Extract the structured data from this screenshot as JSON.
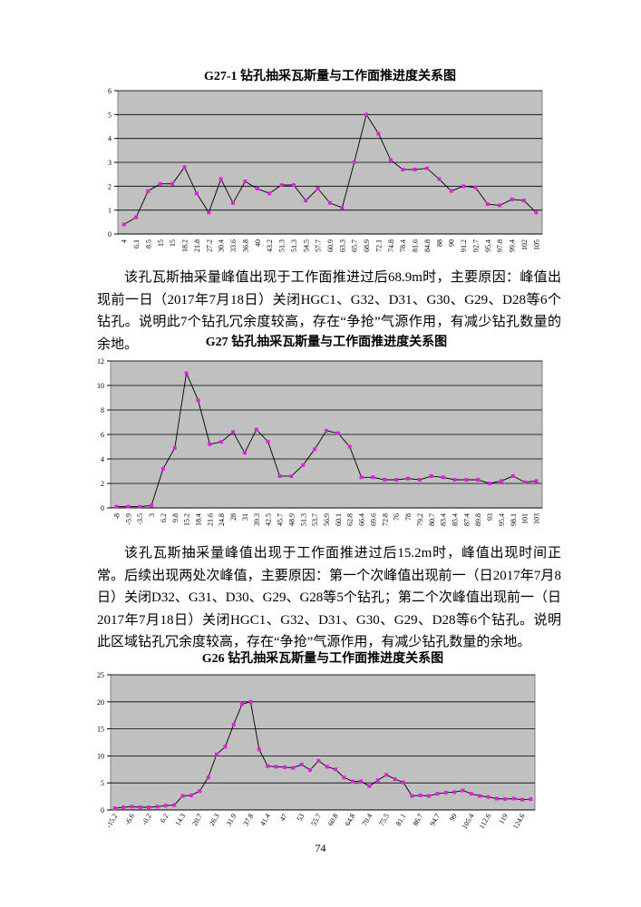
{
  "chart_data": [
    {
      "type": "line",
      "title": "G27-1 钻孔抽采瓦斯量与工作面推进度关系图",
      "categories": [
        "4",
        "6.1",
        "8.5",
        "15",
        "15",
        "18.2",
        "21.8",
        "27.2",
        "30.4",
        "33.6",
        "36.8",
        "40",
        "43.2",
        "51.3",
        "51.3",
        "54.5",
        "57.7",
        "60.9",
        "63.3",
        "65.7",
        "68.9",
        "72.1",
        "74.8",
        "78.4",
        "81.6",
        "84.8",
        "88",
        "90",
        "91.2",
        "92.7",
        "95.4",
        "97.8",
        "99.4",
        "102",
        "105"
      ],
      "series": [
        {
          "color": "#e020e0",
          "values": [
            0.4,
            0.7,
            1.8,
            2.1,
            2.1,
            2.8,
            1.7,
            0.9,
            2.3,
            1.3,
            2.2,
            1.9,
            1.7,
            2.05,
            2.05,
            1.4,
            1.9,
            1.3,
            1.1,
            3.0,
            5.0,
            4.2,
            3.1,
            2.7,
            2.7,
            2.75,
            2.3,
            1.8,
            2.0,
            1.95,
            1.25,
            1.2,
            1.45,
            1.4,
            0.9
          ]
        }
      ],
      "ylim": [
        0,
        6
      ],
      "yticks": [
        0,
        1,
        2,
        3,
        4,
        5,
        6
      ],
      "grid": true
    },
    {
      "type": "line",
      "title": "G27 钻孔抽采瓦斯量与工作面推进度关系图",
      "categories": [
        "-8",
        "-5.9",
        "-3.5",
        "3",
        "6.2",
        "9.8",
        "15.2",
        "18.4",
        "21.6",
        "24.8",
        "28",
        "31",
        "39.3",
        "42.5",
        "45.7",
        "48.9",
        "51.3",
        "53.7",
        "56.9",
        "60.1",
        "62.8",
        "66.4",
        "69.6",
        "72.8",
        "76",
        "78",
        "79.2",
        "80.7",
        "83.4",
        "85.4",
        "87.4",
        "89.8",
        "93",
        "95.4",
        "98.1",
        "101",
        "103"
      ],
      "series": [
        {
          "color": "#e020e0",
          "values": [
            0.1,
            0.1,
            0.1,
            0.2,
            3.2,
            4.9,
            11,
            8.8,
            5.2,
            5.4,
            6.2,
            4.5,
            6.4,
            5.4,
            2.6,
            2.6,
            3.5,
            4.8,
            6.3,
            6.1,
            5.0,
            2.5,
            2.5,
            2.3,
            2.3,
            2.4,
            2.3,
            2.6,
            2.5,
            2.3,
            2.3,
            2.3,
            2.0,
            2.2,
            2.6,
            2.1,
            2.2
          ]
        }
      ],
      "ylim": [
        0,
        12
      ],
      "yticks": [
        0,
        2,
        4,
        6,
        8,
        10,
        12
      ],
      "grid": true
    },
    {
      "type": "line",
      "title": "G26 钻孔抽采瓦斯量与工作面推进度关系图",
      "categories": [
        "-15.2",
        null,
        "-6.6",
        null,
        "-0.2",
        null,
        "6.2",
        null,
        "14.3",
        null,
        "20.7",
        null,
        "26.3",
        null,
        "31.9",
        null,
        "37.8",
        null,
        "41.4",
        null,
        "47",
        null,
        "53",
        null,
        "55.7",
        null,
        "60.8",
        null,
        "64.8",
        null,
        "70.4",
        null,
        "75.5",
        null,
        "81.1",
        null,
        "86.7",
        null,
        "94.7",
        null,
        "99",
        null,
        "105.4",
        null,
        "112.6",
        null,
        "119",
        null,
        "124.6",
        null
      ],
      "series": [
        {
          "color": "#e020e0",
          "values": [
            0.3,
            0.5,
            0.6,
            0.5,
            0.5,
            0.6,
            0.8,
            0.9,
            2.6,
            2.7,
            3.5,
            6,
            10.3,
            11.7,
            15.8,
            19.6,
            20,
            11.2,
            8.1,
            8.0,
            7.9,
            7.8,
            8.4,
            7.4,
            9.1,
            8.0,
            7.5,
            6.0,
            5.3,
            5.3,
            4.4,
            5.5,
            6.5,
            5.7,
            5.1,
            2.6,
            2.7,
            2.6,
            3.0,
            3.2,
            3.3,
            3.6,
            3.0,
            2.6,
            2.4,
            2.1,
            2.0,
            2.1,
            1.9,
            2.0
          ]
        }
      ],
      "ylim": [
        0,
        25
      ],
      "yticks": [
        0,
        5,
        10,
        15,
        20,
        25
      ],
      "grid": true
    }
  ],
  "paragraphs": [
    "该孔瓦斯抽采量峰值出现于工作面推进过后68.9m时，主要原因：峰值出现前一日（2017年7月18日）关闭HGC1、G32、D31、G30、G29、D28等6个钻孔。说明此7个钻孔冗余度较高，存在“争抢”气源作用，有减少钻孔数量的余地。",
    "该孔瓦斯抽采量峰值出现于工作面推进过后15.2m时，峰值出现时间正常。后续出现两处次峰值，主要原因：第一个次峰值出现前一（日2017年7月8日）关闭D32、G31、D30、G29、G28等5个钻孔；第二个次峰值出现前一（日2017年7月18日）关闭HGC1、G32、D31、G30、G29、D28等6个钻孔。说明此区域钻孔冗余度较高，存在“争抢”气源作用，有减少钻孔数量的余地。"
  ],
  "page_number": "74"
}
